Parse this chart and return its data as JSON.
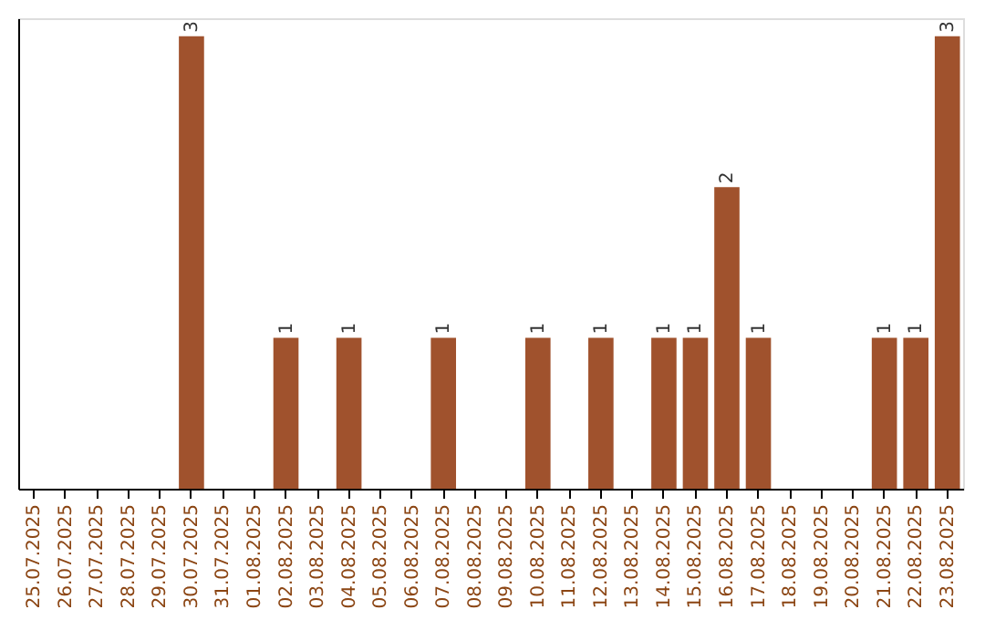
{
  "chart_data": {
    "type": "bar",
    "categories": [
      "25.07.2025",
      "26.07.2025",
      "27.07.2025",
      "28.07.2025",
      "29.07.2025",
      "30.07.2025",
      "31.07.2025",
      "01.08.2025",
      "02.08.2025",
      "03.08.2025",
      "04.08.2025",
      "05.08.2025",
      "06.08.2025",
      "07.08.2025",
      "08.08.2025",
      "09.08.2025",
      "10.08.2025",
      "11.08.2025",
      "12.08.2025",
      "13.08.2025",
      "14.08.2025",
      "15.08.2025",
      "16.08.2025",
      "17.08.2025",
      "18.08.2025",
      "19.08.2025",
      "20.08.2025",
      "21.08.2025",
      "22.08.2025",
      "23.08.2025"
    ],
    "values": [
      0,
      0,
      0,
      0,
      0,
      3,
      0,
      0,
      1,
      0,
      1,
      0,
      0,
      1,
      0,
      0,
      1,
      0,
      1,
      0,
      1,
      1,
      2,
      1,
      0,
      0,
      0,
      1,
      1,
      3
    ],
    "value_labels": [
      null,
      null,
      null,
      null,
      null,
      "3",
      null,
      null,
      "1",
      null,
      "1",
      null,
      null,
      "1",
      null,
      null,
      "1",
      null,
      "1",
      null,
      "1",
      "1",
      "2",
      "1",
      null,
      null,
      null,
      "1",
      "1",
      "3"
    ],
    "color": "#a0522d",
    "ylim": [
      0,
      3.12
    ],
    "tick_labels": "x"
  }
}
